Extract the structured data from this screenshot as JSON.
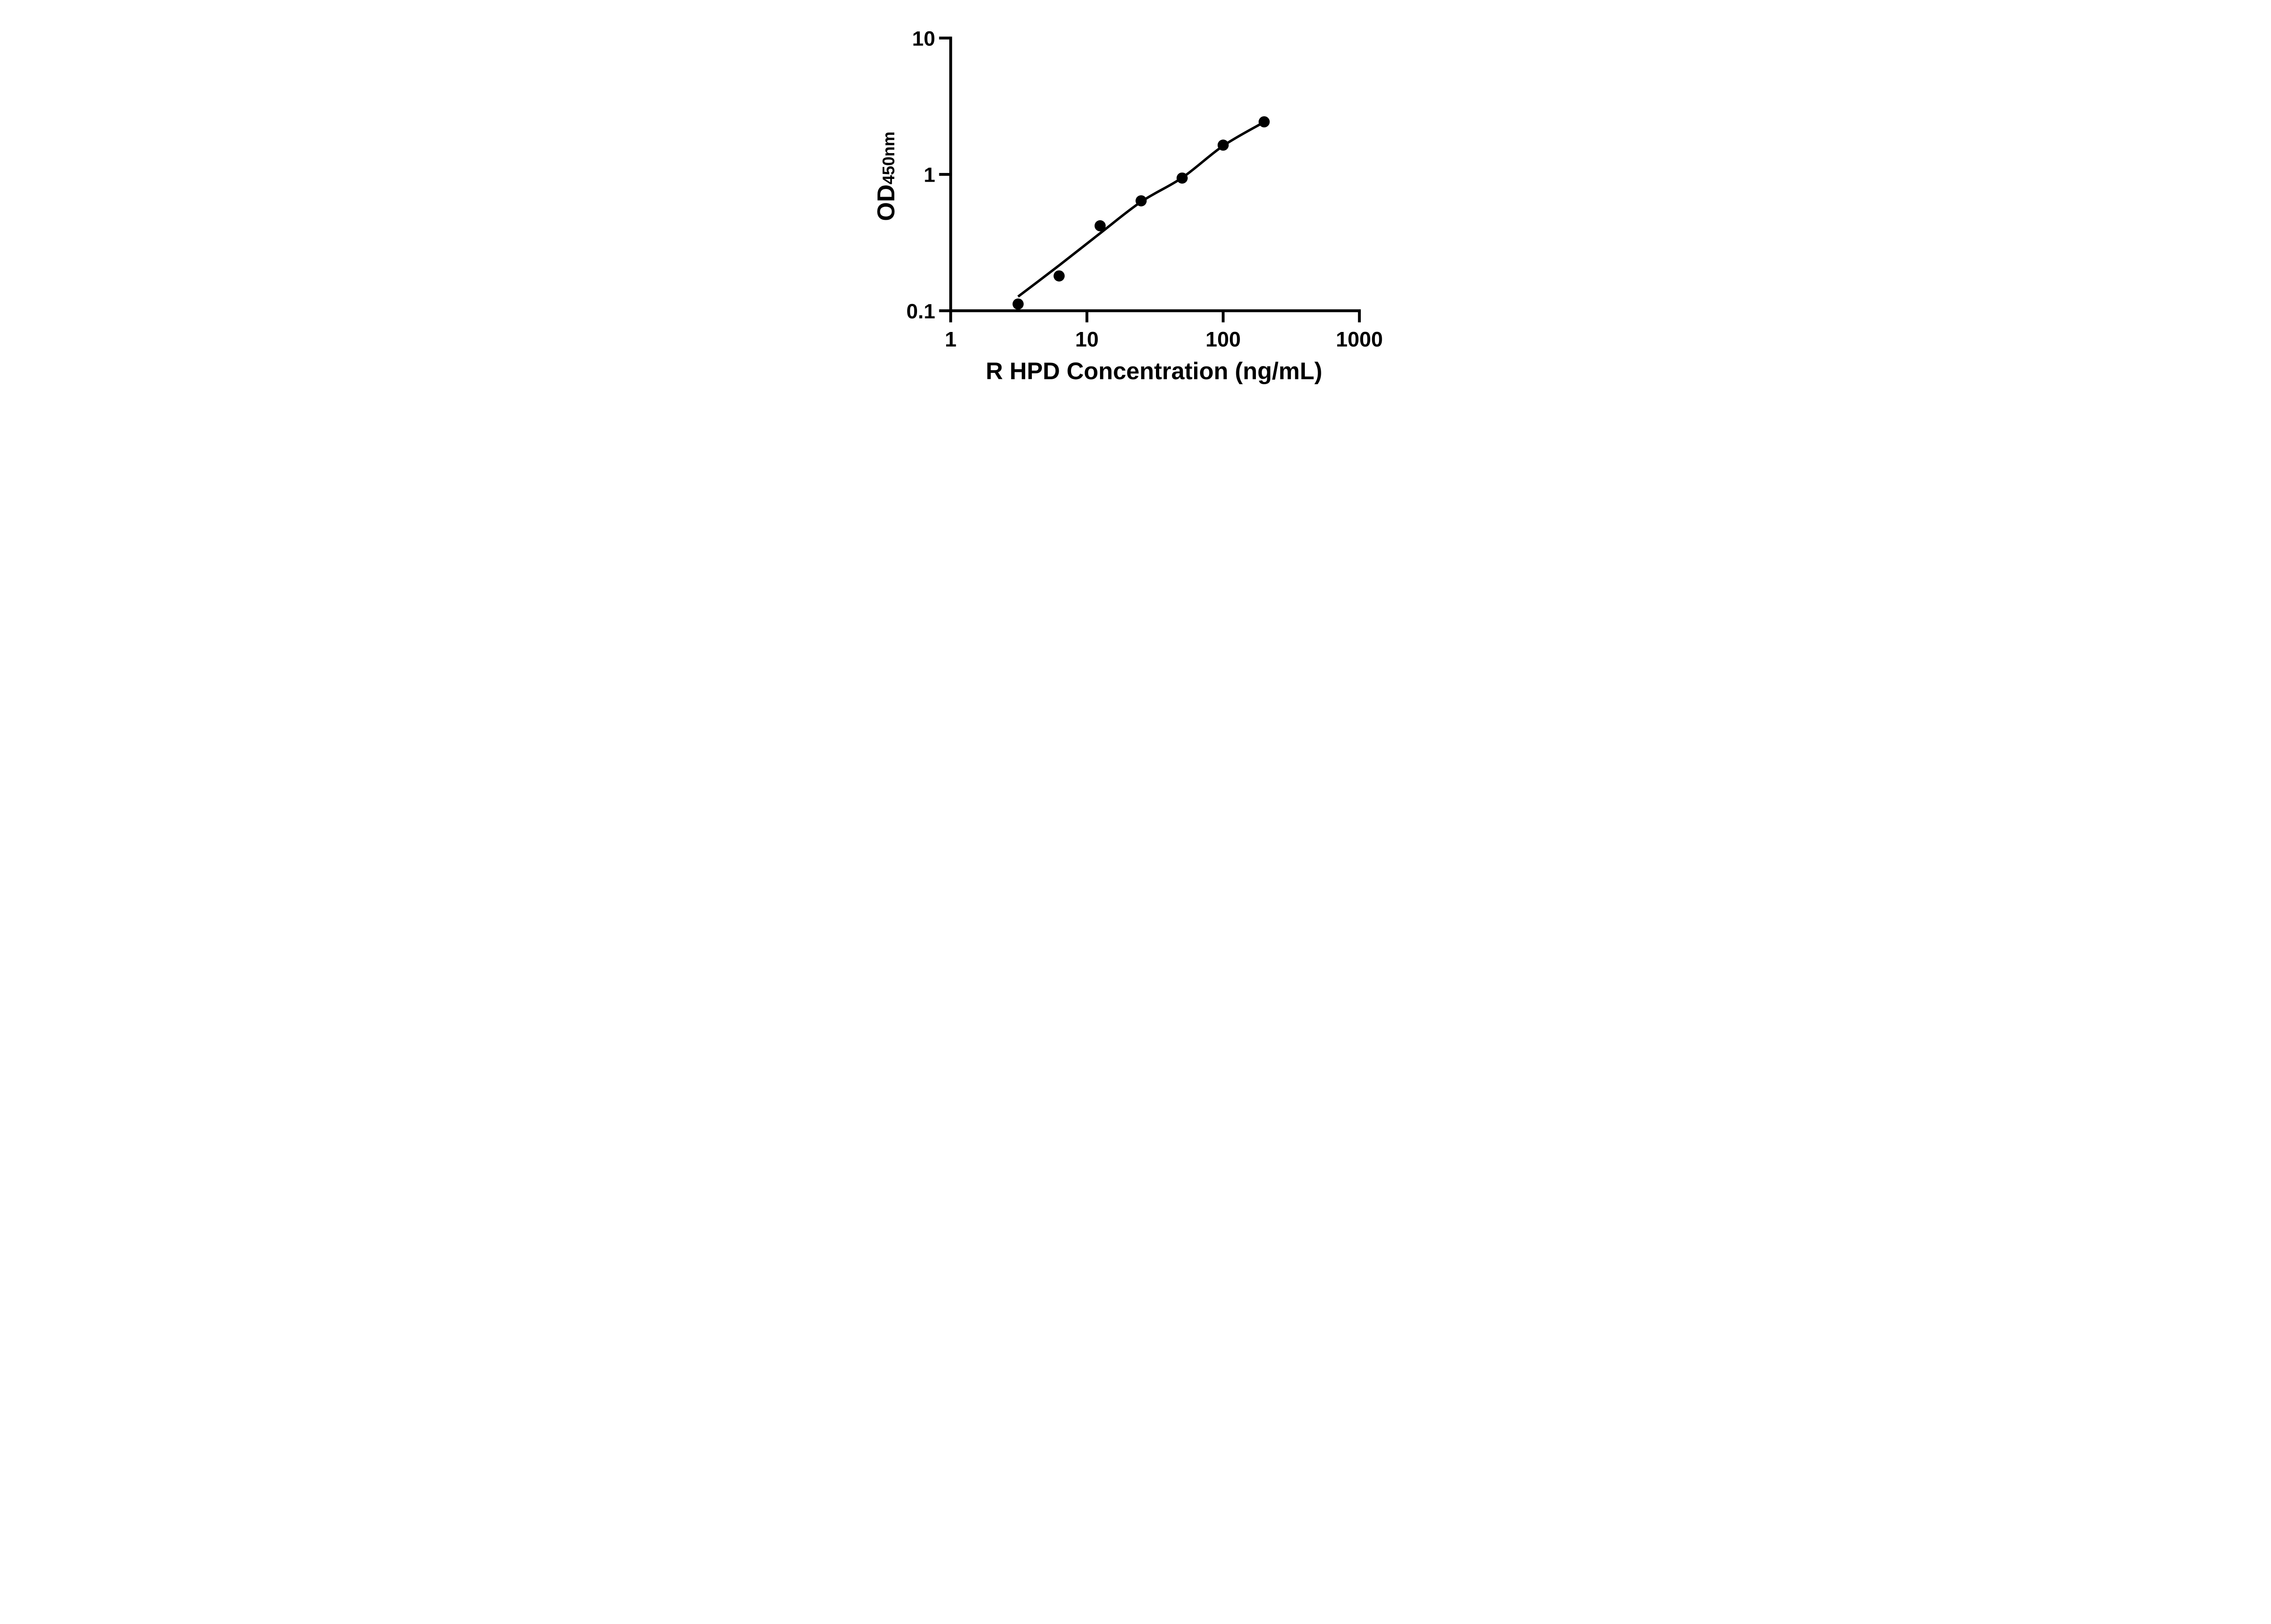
{
  "figure": {
    "background_color": "#ffffff",
    "foreground_color": "#000000"
  },
  "chart_data": {
    "type": "scatter",
    "title": "",
    "xlabel": "R HPD Concentration (ng/mL)",
    "ylabel_main": "OD",
    "ylabel_sub": "450nm",
    "x_scale": "log10",
    "y_scale": "log10",
    "xlim": [
      1,
      1000
    ],
    "ylim": [
      0.1,
      10
    ],
    "x_ticks": [
      {
        "value": 1,
        "label": "1"
      },
      {
        "value": 10,
        "label": "10"
      },
      {
        "value": 100,
        "label": "100"
      },
      {
        "value": 1000,
        "label": "1000"
      }
    ],
    "y_ticks": [
      {
        "value": 10,
        "label": "10"
      },
      {
        "value": 1,
        "label": "1"
      },
      {
        "value": 0.1,
        "label": "0.1"
      }
    ],
    "grid": false,
    "legend": false,
    "series": [
      {
        "name": "standard-curve-points",
        "marker": "filled-circle",
        "color": "#000000",
        "points": [
          {
            "x": 3.125,
            "y": 0.112
          },
          {
            "x": 6.25,
            "y": 0.18
          },
          {
            "x": 12.5,
            "y": 0.42
          },
          {
            "x": 25,
            "y": 0.64
          },
          {
            "x": 50,
            "y": 0.94
          },
          {
            "x": 100,
            "y": 1.64
          },
          {
            "x": 200,
            "y": 2.43
          }
        ]
      }
    ],
    "fit_curve": {
      "name": "fitted-standard-curve",
      "color": "#000000",
      "points": [
        {
          "x": 3.125,
          "y": 0.127
        },
        {
          "x": 6.25,
          "y": 0.215
        },
        {
          "x": 12.5,
          "y": 0.37
        },
        {
          "x": 25,
          "y": 0.63
        },
        {
          "x": 50,
          "y": 0.945
        },
        {
          "x": 100,
          "y": 1.62
        },
        {
          "x": 200,
          "y": 2.42
        }
      ]
    }
  }
}
